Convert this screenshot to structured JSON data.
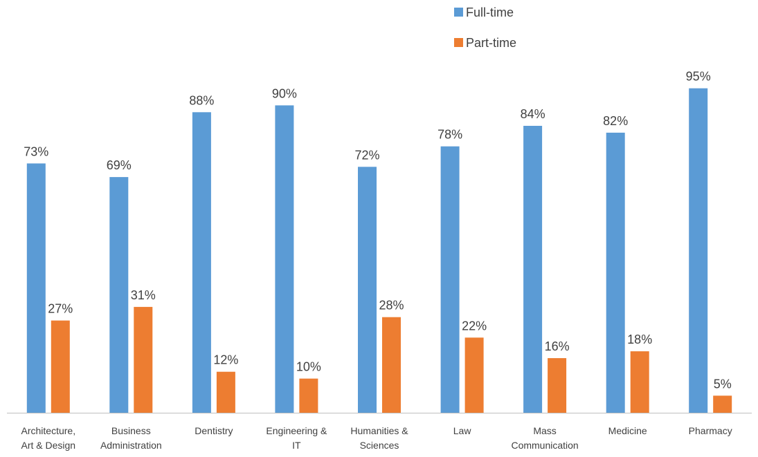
{
  "chart_data": {
    "type": "bar",
    "title": "",
    "xlabel": "",
    "ylabel": "",
    "ylim": [
      0,
      100
    ],
    "grid": false,
    "legend_position": "top-right",
    "categories": [
      [
        "Architecture,",
        "Art & Design"
      ],
      [
        "Business",
        "Administration"
      ],
      [
        "Dentistry"
      ],
      [
        "Engineering &",
        "IT"
      ],
      [
        "Humanities &",
        "Sciences"
      ],
      [
        "Law"
      ],
      [
        "Mass",
        "Communication"
      ],
      [
        "Medicine"
      ],
      [
        "Pharmacy"
      ]
    ],
    "series": [
      {
        "name": "Full-time",
        "color": "#5B9BD5",
        "values": [
          73,
          69,
          88,
          90,
          72,
          78,
          84,
          82,
          95
        ],
        "labels": [
          "73%",
          "69%",
          "88%",
          "90%",
          "72%",
          "78%",
          "84%",
          "82%",
          "95%"
        ]
      },
      {
        "name": "Part-time",
        "color": "#ED7D31",
        "values": [
          27,
          31,
          12,
          10,
          28,
          22,
          16,
          18,
          5
        ],
        "labels": [
          "27%",
          "31%",
          "12%",
          "10%",
          "28%",
          "22%",
          "16%",
          "18%",
          "5%"
        ]
      }
    ]
  }
}
